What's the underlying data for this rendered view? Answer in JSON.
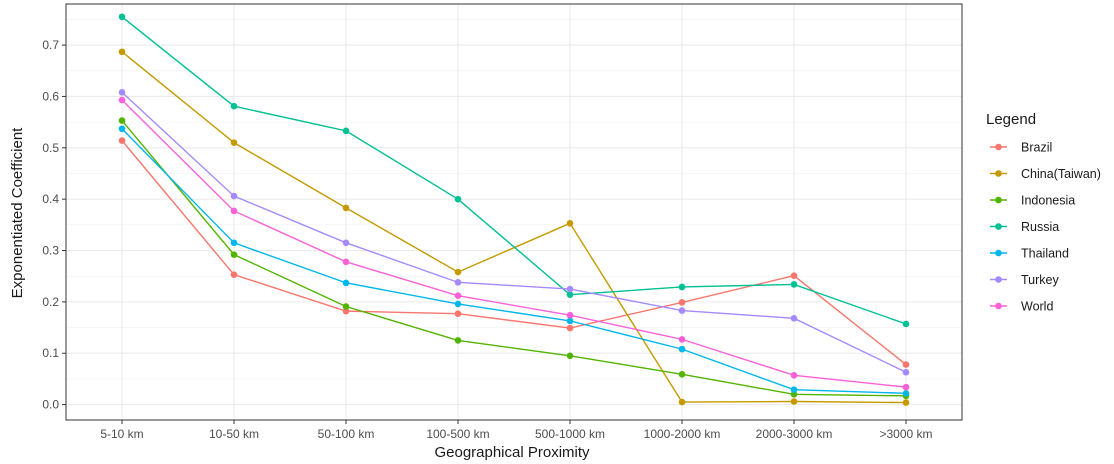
{
  "chart_data": {
    "type": "line",
    "xlabel": "Geographical Proximity",
    "ylabel": "Exponentiated Coefficient",
    "categories": [
      "5-10 km",
      "10-50 km",
      "50-100 km",
      "100-500 km",
      "500-1000 km",
      "1000-2000 km",
      "2000-3000 km",
      ">3000 km"
    ],
    "ylim": [
      -0.03,
      0.78
    ],
    "yticks": [
      "0.0",
      "0.1",
      "0.2",
      "0.3",
      "0.4",
      "0.5",
      "0.6",
      "0.7"
    ],
    "grid": true,
    "legend": {
      "title": "Legend",
      "position": "right"
    },
    "series": [
      {
        "name": "Brazil",
        "color": "#F8766D",
        "values": [
          0.514,
          0.253,
          0.182,
          0.177,
          0.149,
          0.199,
          0.251,
          0.078
        ]
      },
      {
        "name": "China(Taiwan)",
        "color": "#C49A00",
        "values": [
          0.687,
          0.51,
          0.383,
          0.258,
          0.353,
          0.005,
          0.006,
          0.004
        ]
      },
      {
        "name": "Indonesia",
        "color": "#53B400",
        "values": [
          0.553,
          0.292,
          0.191,
          0.125,
          0.095,
          0.059,
          0.02,
          0.017
        ]
      },
      {
        "name": "Russia",
        "color": "#00C094",
        "values": [
          0.755,
          0.581,
          0.533,
          0.4,
          0.214,
          0.229,
          0.234,
          0.157
        ]
      },
      {
        "name": "Thailand",
        "color": "#00B6EB",
        "values": [
          0.537,
          0.315,
          0.237,
          0.196,
          0.163,
          0.108,
          0.029,
          0.022
        ]
      },
      {
        "name": "Turkey",
        "color": "#A58AFF",
        "values": [
          0.608,
          0.406,
          0.315,
          0.238,
          0.225,
          0.183,
          0.168,
          0.063
        ]
      },
      {
        "name": "World",
        "color": "#FB61D7",
        "values": [
          0.593,
          0.377,
          0.278,
          0.212,
          0.174,
          0.127,
          0.057,
          0.034
        ]
      }
    ]
  }
}
